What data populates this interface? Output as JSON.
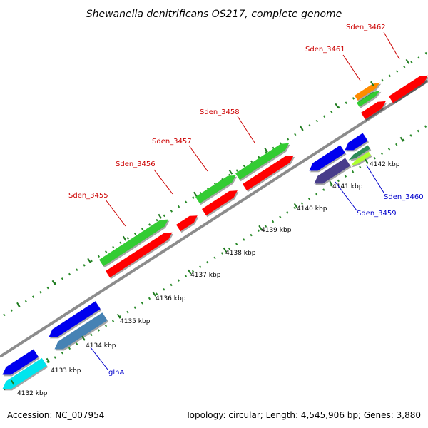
{
  "title": "Shewanella denitrificans OS217, complete genome",
  "footer": {
    "accession": "Accession: NC_007954",
    "summary": "Topology: circular; Length: 4,545,906 bp; Genes: 3,880"
  },
  "colors": {
    "backbone": "#8c8c8c",
    "tick_dots": "#2a8a2a",
    "fwd_label": "#cc0000",
    "rev_label": "#0000cc"
  },
  "ticks": [
    "4132 kbp",
    "4133 kbp",
    "4134 kbp",
    "4135 kbp",
    "4136 kbp",
    "4137 kbp",
    "4138 kbp",
    "4139 kbp",
    "4140 kbp",
    "4141 kbp",
    "4142 kbp"
  ],
  "gene_labels": [
    {
      "text": "Sden_3455",
      "strand": "fwd"
    },
    {
      "text": "Sden_3456",
      "strand": "fwd"
    },
    {
      "text": "Sden_3457",
      "strand": "fwd"
    },
    {
      "text": "Sden_3458",
      "strand": "fwd"
    },
    {
      "text": "Sden_3461",
      "strand": "fwd"
    },
    {
      "text": "Sden_3462",
      "strand": "fwd"
    },
    {
      "text": "Sden_3459",
      "strand": "rev"
    },
    {
      "text": "Sden_3460",
      "strand": "rev"
    },
    {
      "text": "glnA",
      "strand": "rev"
    }
  ],
  "features": [
    {
      "name": "fwd-gene-0",
      "color": "#ff0000",
      "dir": 1
    },
    {
      "name": "fwd-gene-1",
      "color": "#ff0000",
      "dir": 1
    },
    {
      "name": "fwd-gene-2",
      "color": "#ff0000",
      "dir": 1
    },
    {
      "name": "fwd-gene-3",
      "color": "#ff0000",
      "dir": 1
    },
    {
      "name": "fwd-gene-4",
      "color": "#ff0000",
      "dir": 1
    },
    {
      "name": "fwd-gene-5",
      "color": "#ff0000",
      "dir": 1
    },
    {
      "name": "fwd-cds-0",
      "color": "#33cc33",
      "dir": 1
    },
    {
      "name": "fwd-cds-1",
      "color": "#33cc33",
      "dir": 1
    },
    {
      "name": "fwd-cds-2",
      "color": "#33cc33",
      "dir": 1
    },
    {
      "name": "fwd-cds-3",
      "color": "#33cc33",
      "dir": 1
    },
    {
      "name": "fwd-trna",
      "color": "#ff8c00",
      "dir": 1
    },
    {
      "name": "rev-gene-0",
      "color": "#0000ee",
      "dir": -1
    },
    {
      "name": "rev-gene-1",
      "color": "#0000ee",
      "dir": -1
    },
    {
      "name": "rev-gene-2",
      "color": "#0000ee",
      "dir": -1
    },
    {
      "name": "rev-gene-3",
      "color": "#0000ee",
      "dir": -1
    },
    {
      "name": "rev-cds-glnA",
      "color": "#4682b4",
      "dir": -1
    },
    {
      "name": "rev-cds-cyan",
      "color": "#00e5ee",
      "dir": -1
    },
    {
      "name": "rev-cds-3459",
      "color": "#483d8b",
      "dir": -1
    },
    {
      "name": "rev-cds-3460a",
      "color": "#2e8b57",
      "dir": -1
    },
    {
      "name": "rev-cds-3460b",
      "color": "#adff2f",
      "dir": -1
    }
  ]
}
